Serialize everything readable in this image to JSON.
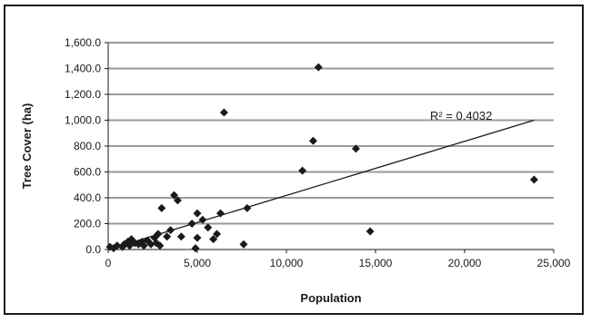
{
  "chart_data": {
    "type": "scatter",
    "title": "",
    "xlabel": "Population",
    "ylabel": "Tree Cover (ha)",
    "xlim": [
      0,
      25000
    ],
    "ylim": [
      0,
      1600
    ],
    "x_ticks": [
      0,
      5000,
      10000,
      15000,
      20000,
      25000
    ],
    "x_tick_labels": [
      "0",
      "5,000",
      "10,000",
      "15,000",
      "20,000",
      "25,000"
    ],
    "y_ticks": [
      0,
      200,
      400,
      600,
      800,
      1000,
      1200,
      1400,
      1600
    ],
    "y_tick_labels": [
      "0.0",
      "200.0",
      "400.0",
      "600.0",
      "800.0",
      "1,000.0",
      "1,200.0",
      "1,400.0",
      "1,600.0"
    ],
    "grid": "horizontal",
    "colors": {
      "point": "#1a1a1a",
      "grid": "#9a9a9a",
      "line": "#1a1a1a"
    },
    "points": [
      {
        "x": 100,
        "y": 20
      },
      {
        "x": 300,
        "y": 10
      },
      {
        "x": 500,
        "y": 30
      },
      {
        "x": 800,
        "y": 20
      },
      {
        "x": 900,
        "y": 40
      },
      {
        "x": 1100,
        "y": 60
      },
      {
        "x": 1200,
        "y": 30
      },
      {
        "x": 1300,
        "y": 80
      },
      {
        "x": 1500,
        "y": 50
      },
      {
        "x": 1700,
        "y": 40
      },
      {
        "x": 1900,
        "y": 60
      },
      {
        "x": 2000,
        "y": 30
      },
      {
        "x": 2200,
        "y": 70
      },
      {
        "x": 2400,
        "y": 40
      },
      {
        "x": 2600,
        "y": 90
      },
      {
        "x": 2700,
        "y": 50
      },
      {
        "x": 2800,
        "y": 120
      },
      {
        "x": 2900,
        "y": 30
      },
      {
        "x": 3000,
        "y": 320
      },
      {
        "x": 3300,
        "y": 100
      },
      {
        "x": 3500,
        "y": 150
      },
      {
        "x": 3700,
        "y": 420
      },
      {
        "x": 3900,
        "y": 380
      },
      {
        "x": 4100,
        "y": 100
      },
      {
        "x": 4700,
        "y": 200
      },
      {
        "x": 4900,
        "y": 10
      },
      {
        "x": 5000,
        "y": 90
      },
      {
        "x": 5000,
        "y": 280
      },
      {
        "x": 5300,
        "y": 230
      },
      {
        "x": 5600,
        "y": 170
      },
      {
        "x": 5900,
        "y": 80
      },
      {
        "x": 6100,
        "y": 120
      },
      {
        "x": 6300,
        "y": 280
      },
      {
        "x": 6500,
        "y": 1060
      },
      {
        "x": 7600,
        "y": 40
      },
      {
        "x": 7800,
        "y": 320
      },
      {
        "x": 10900,
        "y": 610
      },
      {
        "x": 11500,
        "y": 840
      },
      {
        "x": 11800,
        "y": 1410
      },
      {
        "x": 13900,
        "y": 780
      },
      {
        "x": 14700,
        "y": 140
      },
      {
        "x": 23900,
        "y": 540
      }
    ],
    "trendline": {
      "type": "linear",
      "x": [
        0,
        23900
      ],
      "y": [
        0,
        1000
      ],
      "annotation": "R² = 0.4032",
      "r_squared": 0.4032
    }
  }
}
